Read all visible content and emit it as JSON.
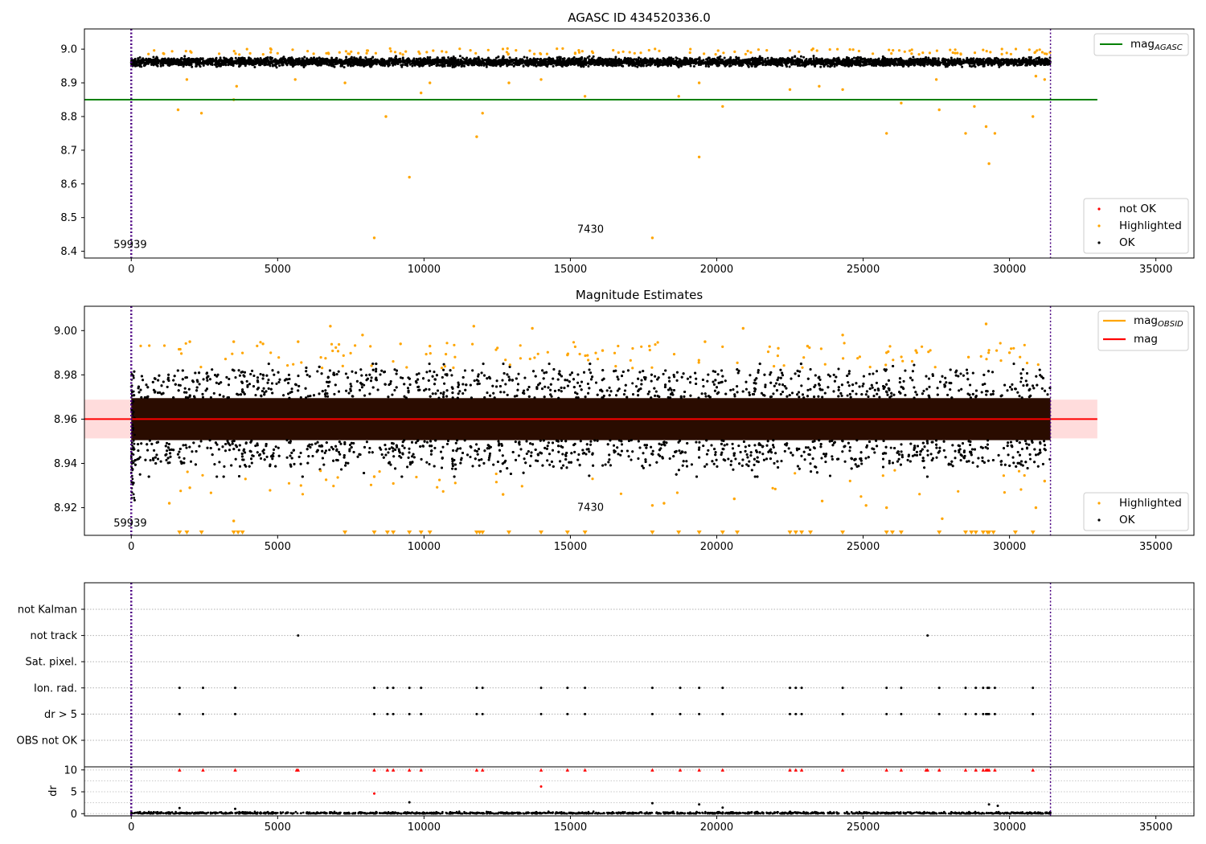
{
  "figure": {
    "ok_color": "#000000",
    "highlight_color": "#ffa500",
    "not_ok_color": "#ff0000",
    "agasc_line_color": "#008000",
    "mean_line_color": "#ff0000",
    "band_color": "#ffdcdc",
    "boundary_line_color": "#4b0082"
  },
  "chart_data": [
    {
      "type": "scatter",
      "title": "AGASC ID 434520336.0",
      "xlim": [
        -1600,
        36300
      ],
      "ylim": [
        8.38,
        9.06
      ],
      "x_ticks": [
        0,
        5000,
        10000,
        15000,
        20000,
        25000,
        30000,
        35000
      ],
      "y_ticks": [
        8.4,
        8.5,
        8.6,
        8.7,
        8.8,
        8.9,
        9.0
      ],
      "obs_boundaries": [
        0,
        31400
      ],
      "annotations": [
        {
          "text": "59939",
          "x": 0,
          "y": 8.41
        },
        {
          "text": "7430",
          "x": 15700,
          "y": 8.455
        }
      ],
      "reference_line": {
        "name": "mag_AGASC",
        "label": "mag",
        "sub": "AGASC",
        "y": 8.85,
        "x_range": [
          -1600,
          33000
        ]
      },
      "legend_lines": [
        {
          "label": "mag",
          "sub": "AGASC",
          "color": "#008000",
          "position": "upper right"
        }
      ],
      "legend_points": {
        "position": "lower right",
        "items": [
          {
            "label": "not OK",
            "color": "#ff0000"
          },
          {
            "label": "Highlighted",
            "color": "#ffa500"
          },
          {
            "label": "OK",
            "color": "#000000"
          }
        ]
      },
      "series": [
        {
          "name": "OK",
          "x_range": [
            0,
            31400
          ],
          "y_center": 8.962,
          "y_spread": 0.013
        },
        {
          "name": "Highlighted",
          "points": [
            [
              1600,
              8.82
            ],
            [
              2400,
              8.81
            ],
            [
              3500,
              8.85
            ],
            [
              3600,
              8.89
            ],
            [
              8300,
              8.44
            ],
            [
              8700,
              8.8
            ],
            [
              9500,
              8.62
            ],
            [
              9900,
              8.87
            ],
            [
              11800,
              8.74
            ],
            [
              12000,
              8.81
            ],
            [
              15500,
              8.86
            ],
            [
              17800,
              8.44
            ],
            [
              18700,
              8.86
            ],
            [
              19400,
              8.68
            ],
            [
              20200,
              8.83
            ],
            [
              25800,
              8.75
            ],
            [
              26300,
              8.84
            ],
            [
              27600,
              8.82
            ],
            [
              28500,
              8.75
            ],
            [
              28800,
              8.83
            ],
            [
              29200,
              8.77
            ],
            [
              29300,
              8.66
            ],
            [
              29500,
              8.75
            ],
            [
              30800,
              8.8
            ],
            [
              7300,
              8.9
            ],
            [
              10200,
              8.9
            ],
            [
              12900,
              8.9
            ],
            [
              22500,
              8.88
            ],
            [
              23500,
              8.89
            ],
            [
              24300,
              8.88
            ],
            [
              1900,
              8.91
            ],
            [
              5600,
              8.91
            ],
            [
              14000,
              8.91
            ],
            [
              19400,
              8.9
            ],
            [
              27500,
              8.91
            ],
            [
              30900,
              8.92
            ],
            [
              31200,
              8.91
            ]
          ]
        }
      ]
    },
    {
      "type": "scatter",
      "title": "Magnitude Estimates",
      "xlim": [
        -1600,
        36300
      ],
      "ylim": [
        8.9075,
        9.011
      ],
      "x_ticks": [
        0,
        5000,
        10000,
        15000,
        20000,
        25000,
        30000,
        35000
      ],
      "y_ticks": [
        8.92,
        8.94,
        8.96,
        8.98,
        9.0
      ],
      "y_tick_labels": [
        "8.92",
        "8.94",
        "8.96",
        "8.98",
        "9.00"
      ],
      "obs_boundaries": [
        0,
        31400
      ],
      "annotations": [
        {
          "text": "59939",
          "x": 0,
          "y": 8.9115
        },
        {
          "text": "7430",
          "x": 15700,
          "y": 8.9185
        }
      ],
      "mean_line": {
        "y": 8.96,
        "band": [
          8.9513,
          8.9688
        ],
        "x_range": [
          -1600,
          33000
        ]
      },
      "legend_lines": [
        {
          "label": "mag",
          "sub": "OBSID",
          "color": "#ffa500",
          "position": "upper right"
        },
        {
          "label": "mag",
          "sub": "",
          "color": "#ff0000",
          "position": "upper right"
        }
      ],
      "legend_points": {
        "position": "lower right",
        "items": [
          {
            "label": "Highlighted",
            "color": "#ffa500"
          },
          {
            "label": "OK",
            "color": "#000000"
          }
        ]
      },
      "series": [
        {
          "name": "OK",
          "x_range": [
            0,
            31400
          ],
          "y_center": 8.96,
          "y_spread": 0.011
        },
        {
          "name": "Highlighted",
          "points": [
            [
              6800,
              9.002
            ],
            [
              11700,
              9.002
            ],
            [
              13700,
              9.001
            ],
            [
              20900,
              9.001
            ],
            [
              29200,
              9.003
            ],
            [
              7900,
              8.998
            ],
            [
              24300,
              8.998
            ],
            [
              2000,
              8.995
            ],
            [
              3500,
              8.995
            ],
            [
              4500,
              8.994
            ],
            [
              5700,
              8.995
            ],
            [
              9200,
              8.994
            ],
            [
              10200,
              8.993
            ],
            [
              14900,
              8.989
            ],
            [
              16100,
              8.991
            ],
            [
              17700,
              8.993
            ],
            [
              19600,
              8.995
            ],
            [
              22100,
              8.992
            ],
            [
              23100,
              8.993
            ],
            [
              25800,
              8.99
            ],
            [
              26800,
              8.991
            ],
            [
              28600,
              8.988
            ],
            [
              30000,
              8.99
            ],
            [
              1300,
              8.922
            ],
            [
              2000,
              8.929
            ],
            [
              3500,
              8.914
            ],
            [
              8300,
              8.934
            ],
            [
              12700,
              8.926
            ],
            [
              17800,
              8.921
            ],
            [
              18200,
              8.922
            ],
            [
              20600,
              8.924
            ],
            [
              23600,
              8.923
            ],
            [
              25100,
              8.921
            ],
            [
              25800,
              8.92
            ],
            [
              27700,
              8.915
            ],
            [
              30900,
              8.92
            ],
            [
              31200,
              8.932
            ]
          ]
        },
        {
          "name": "Highlighted-below-axis",
          "x": [
            1650,
            1900,
            2400,
            3500,
            3650,
            3800,
            7300,
            8300,
            8750,
            8950,
            9500,
            9900,
            10200,
            11800,
            11900,
            12000,
            12900,
            14000,
            14900,
            15500,
            17800,
            18700,
            19400,
            20200,
            20700,
            22500,
            22700,
            22900,
            23200,
            24300,
            25800,
            26000,
            26300,
            27600,
            28500,
            28700,
            28850,
            29100,
            29250,
            29300,
            29450,
            30200,
            30800
          ]
        }
      ]
    },
    {
      "type": "scatter",
      "title": "",
      "xlim": [
        -1600,
        36300
      ],
      "x_ticks": [
        0,
        5000,
        10000,
        15000,
        20000,
        25000,
        30000,
        35000
      ],
      "obs_boundaries": [
        0,
        31400
      ],
      "flag_rows": [
        "not Kalman",
        "not track",
        "Sat. pixel.",
        "Ion. rad.",
        "dr > 5",
        "OBS not OK"
      ],
      "flags": {
        "not track": [
          5700,
          27200
        ],
        "Ion. rad.": [
          1650,
          2450,
          3550,
          8300,
          8750,
          8950,
          9500,
          9900,
          11800,
          12000,
          14000,
          14900,
          15500,
          17800,
          18750,
          19400,
          20200,
          22500,
          22700,
          22900,
          24300,
          25800,
          26300,
          27600,
          28500,
          28850,
          29100,
          29250,
          29300,
          29500,
          30800
        ],
        "dr > 5": [
          1650,
          2450,
          3550,
          8300,
          8750,
          8950,
          9500,
          9900,
          11800,
          12000,
          14000,
          14900,
          15500,
          17800,
          18750,
          19400,
          20200,
          22500,
          22700,
          22900,
          24300,
          25800,
          26300,
          27600,
          28500,
          28850,
          29100,
          29200,
          29250,
          29300,
          29500,
          30800
        ]
      },
      "dr_panel": {
        "ylabel": "dr",
        "ylim": [
          -0.5,
          10.7
        ],
        "y_ticks": [
          0,
          5,
          10
        ],
        "clipped_at_10": [
          1650,
          2450,
          3550,
          5650,
          5700,
          8300,
          8750,
          8950,
          9500,
          9900,
          11800,
          12000,
          14000,
          14900,
          15500,
          17800,
          18750,
          19400,
          20200,
          22500,
          22700,
          22900,
          24300,
          25800,
          26300,
          27150,
          27200,
          27600,
          28500,
          28850,
          29100,
          29200,
          29250,
          29300,
          29500,
          30800
        ],
        "outliers": [
          [
            8300,
            4.6
          ],
          [
            14000,
            6.2
          ],
          [
            9500,
            2.6
          ],
          [
            17800,
            2.4
          ],
          [
            19400,
            2.1
          ],
          [
            20200,
            1.4
          ],
          [
            29300,
            2.1
          ],
          [
            29600,
            1.8
          ],
          [
            1650,
            1.3
          ],
          [
            3550,
            1.1
          ]
        ]
      }
    }
  ]
}
